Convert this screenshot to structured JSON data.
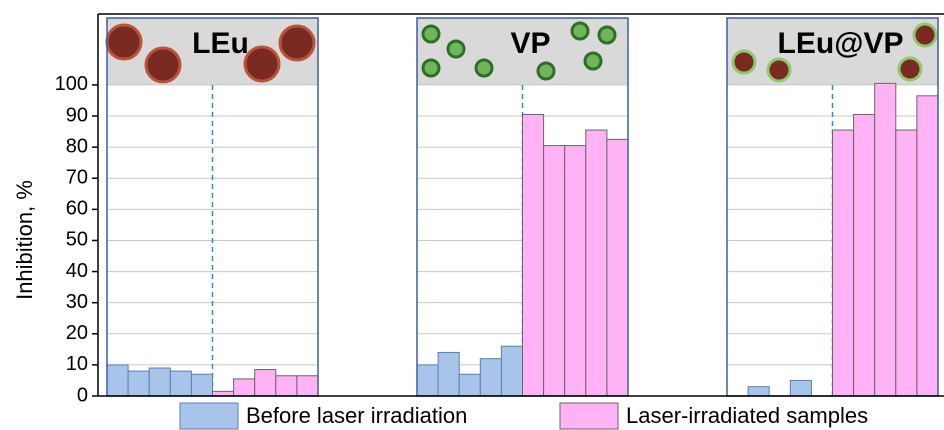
{
  "chart_data": {
    "type": "grouped-bar",
    "y_label": "Inhibition, %",
    "categories": [
      "LEu",
      "VP",
      "LEu@VP"
    ],
    "series": [
      {
        "name": "Before laser irradiation",
        "color": "#a9c4eb",
        "values": [
          [
            10,
            8,
            9,
            8,
            7
          ],
          [
            10,
            14,
            7,
            12,
            16
          ],
          [
            0,
            3,
            0,
            5,
            0
          ]
        ]
      },
      {
        "name": "Laser-irradiated samples",
        "color": "#ffb3f5",
        "values": [
          [
            1.5,
            5.5,
            8.5,
            6.5,
            6.5
          ],
          [
            90.5,
            80.5,
            80.5,
            85.5,
            82.5
          ],
          [
            85.5,
            90.5,
            100.5,
            85.5,
            96.5
          ]
        ]
      }
    ],
    "ylim": [
      0,
      122.8
    ],
    "yticks": [
      0,
      10,
      20,
      30,
      40,
      50,
      60,
      70,
      80,
      90,
      100
    ],
    "grid": true
  }
}
